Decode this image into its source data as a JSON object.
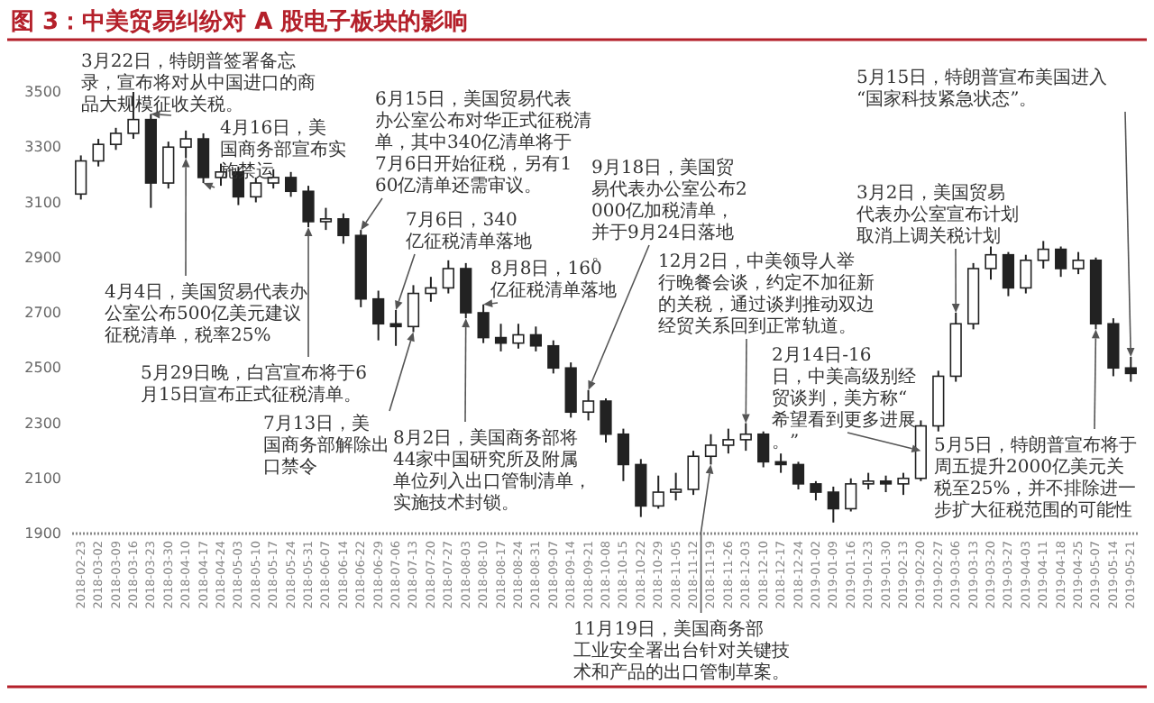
{
  "chart_data": {
    "type": "candlestick",
    "title": "图 3：中美贸易纠纷对 A 股电子板块的影响",
    "categories": [
      "2018-02-23",
      "2018-03-02",
      "2018-03-09",
      "2018-03-16",
      "2018-03-23",
      "2018-03-30",
      "2018-04-10",
      "2018-04-17",
      "2018-04-24",
      "2018-05-03",
      "2018-05-10",
      "2018-05-17",
      "2018-05-24",
      "2018-05-31",
      "2018-06-07",
      "2018-06-14",
      "2018-06-22",
      "2018-06-29",
      "2018-07-06",
      "2018-07-13",
      "2018-07-20",
      "2018-07-27",
      "2018-08-03",
      "2018-08-10",
      "2018-08-17",
      "2018-08-24",
      "2018-08-31",
      "2018-09-07",
      "2018-09-14",
      "2018-09-21",
      "2018-10-08",
      "2018-10-15",
      "2018-10-22",
      "2018-10-29",
      "2018-11-05",
      "2018-11-12",
      "2018-11-19",
      "2018-11-26",
      "2018-12-03",
      "2018-12-10",
      "2018-12-17",
      "2018-12-24",
      "2019-01-02",
      "2019-01-09",
      "2019-01-16",
      "2019-01-23",
      "2019-01-30",
      "2019-02-13",
      "2019-02-20",
      "2019-02-27",
      "2019-03-06",
      "2019-03-13",
      "2019-03-20",
      "2019-03-27",
      "2019-04-03",
      "2019-04-11",
      "2019-04-18",
      "2019-04-25",
      "2019-05-07",
      "2019-05-14",
      "2019-05-21"
    ],
    "ohlc": [
      [
        3130,
        3270,
        3110,
        3250
      ],
      [
        3250,
        3330,
        3230,
        3310
      ],
      [
        3310,
        3370,
        3290,
        3350
      ],
      [
        3350,
        3500,
        3330,
        3400
      ],
      [
        3400,
        3420,
        3080,
        3170
      ],
      [
        3170,
        3320,
        3150,
        3300
      ],
      [
        3300,
        3360,
        3260,
        3330
      ],
      [
        3330,
        3350,
        3170,
        3190
      ],
      [
        3190,
        3240,
        3160,
        3210
      ],
      [
        3210,
        3230,
        3090,
        3120
      ],
      [
        3120,
        3190,
        3100,
        3170
      ],
      [
        3170,
        3220,
        3150,
        3190
      ],
      [
        3190,
        3210,
        3120,
        3140
      ],
      [
        3140,
        3160,
        3010,
        3030
      ],
      [
        3030,
        3080,
        3000,
        3040
      ],
      [
        3040,
        3060,
        2950,
        2980
      ],
      [
        2980,
        3000,
        2720,
        2750
      ],
      [
        2750,
        2780,
        2600,
        2660
      ],
      [
        2660,
        2710,
        2580,
        2650
      ],
      [
        2650,
        2800,
        2630,
        2770
      ],
      [
        2770,
        2830,
        2740,
        2790
      ],
      [
        2790,
        2890,
        2770,
        2860
      ],
      [
        2860,
        2880,
        2680,
        2700
      ],
      [
        2700,
        2730,
        2590,
        2610
      ],
      [
        2610,
        2660,
        2560,
        2590
      ],
      [
        2590,
        2660,
        2570,
        2620
      ],
      [
        2620,
        2650,
        2560,
        2580
      ],
      [
        2580,
        2600,
        2480,
        2500
      ],
      [
        2500,
        2520,
        2320,
        2340
      ],
      [
        2340,
        2420,
        2310,
        2380
      ],
      [
        2380,
        2390,
        2230,
        2260
      ],
      [
        2260,
        2280,
        2090,
        2150
      ],
      [
        2150,
        2170,
        1960,
        2000
      ],
      [
        2000,
        2110,
        1990,
        2050
      ],
      [
        2050,
        2120,
        2020,
        2060
      ],
      [
        2060,
        2200,
        2040,
        2180
      ],
      [
        2180,
        2260,
        2150,
        2220
      ],
      [
        2220,
        2280,
        2190,
        2240
      ],
      [
        2240,
        2300,
        2200,
        2260
      ],
      [
        2260,
        2270,
        2140,
        2160
      ],
      [
        2160,
        2190,
        2120,
        2150
      ],
      [
        2150,
        2160,
        2060,
        2080
      ],
      [
        2080,
        2090,
        2020,
        2050
      ],
      [
        2050,
        2070,
        1940,
        1990
      ],
      [
        1990,
        2100,
        1980,
        2080
      ],
      [
        2080,
        2120,
        2060,
        2090
      ],
      [
        2090,
        2110,
        2050,
        2080
      ],
      [
        2080,
        2120,
        2040,
        2100
      ],
      [
        2100,
        2310,
        2090,
        2290
      ],
      [
        2290,
        2490,
        2270,
        2470
      ],
      [
        2470,
        2700,
        2450,
        2660
      ],
      [
        2660,
        2880,
        2640,
        2860
      ],
      [
        2860,
        2940,
        2820,
        2910
      ],
      [
        2910,
        2920,
        2760,
        2790
      ],
      [
        2790,
        2910,
        2770,
        2890
      ],
      [
        2890,
        2960,
        2860,
        2930
      ],
      [
        2930,
        2940,
        2830,
        2860
      ],
      [
        2860,
        2920,
        2840,
        2890
      ],
      [
        2890,
        2900,
        2640,
        2660
      ],
      [
        2660,
        2680,
        2470,
        2500
      ],
      [
        2500,
        2540,
        2450,
        2480
      ]
    ],
    "ylim": [
      1900,
      3500
    ],
    "yticks": [
      1900,
      2100,
      2300,
      2500,
      2700,
      2900,
      3100,
      3300,
      3500
    ],
    "annotations": [
      {
        "text": "3月22日，特朗普签署备忘录，宣布将对从中国进口的商品大规模征收关税。",
        "x": "2018-03-23",
        "y": 3420
      },
      {
        "text": "4月4日，美国贸易代表办公室公布500亿美元建议征税清单，税率25%",
        "x": "2018-04-10",
        "y": 3260
      },
      {
        "text": "4月16日，美国商务部宣布实施禁运",
        "x": "2018-04-17",
        "y": 3170
      },
      {
        "text": "5月29日晚，白宫宣布将于6月15日宣布正式征税清单。",
        "x": "2018-05-31",
        "y": 3010
      },
      {
        "text": "6月15日，美国贸易代表办公室公布对华正式征税清单，其中340亿清单将于7月6日开始征税，另有160亿清单还需审议。",
        "x": "2018-06-22",
        "y": 3000
      },
      {
        "text": "7月6日，340亿征税清单落地",
        "x": "2018-07-06",
        "y": 2710
      },
      {
        "text": "7月13日，美国商务部解除出口禁令",
        "x": "2018-07-13",
        "y": 2630
      },
      {
        "text": "8月2日，美国商务部将44家中国研究所及附属单位列入出口管制清单，实施技术封锁。",
        "x": "2018-08-03",
        "y": 2680
      },
      {
        "text": "8月8日，160亿征税清单落地",
        "x": "2018-08-10",
        "y": 2730
      },
      {
        "text": "9月18日，美国贸易代表办公室公布2000亿加税清单，并于9月24日落地。",
        "x": "2018-09-21",
        "y": 2420
      },
      {
        "text": "11月19日，美国商务部工业安全署出台针对关键技术和产品的出口管制草案。",
        "x": "2018-11-19",
        "y": 2150
      },
      {
        "text": "12月2日，中美领导人举行晚餐会谈，约定不加征新的关税，通过谈判推动双边经贸关系回到正常轨道。",
        "x": "2018-12-03",
        "y": 2300
      },
      {
        "text": "2月14日-16日，中美高级别经贸谈判，美方称“希望看到更多进展。”",
        "x": "2019-02-20",
        "y": 2200
      },
      {
        "text": "3月2日，美国贸易代表办公室宣布计划取消上调关税计划",
        "x": "2019-03-06",
        "y": 2700
      },
      {
        "text": "5月5日，特朗普宣布将于周五提升2000亿美元关税至25%，并不排除进一步扩大征税范围的可能性",
        "x": "2019-05-07",
        "y": 2640
      },
      {
        "text": "5月15日，特朗普宣布美国进入“国家科技紧急状态”。",
        "x": "2019-05-21",
        "y": 2540
      }
    ]
  }
}
